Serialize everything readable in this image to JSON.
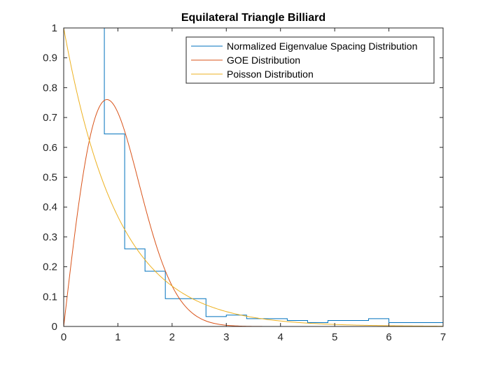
{
  "chart_data": {
    "type": "line",
    "title": "Equilateral Triangle Billiard",
    "xlabel": "",
    "ylabel": "",
    "xlim": [
      0,
      7
    ],
    "ylim": [
      0,
      1
    ],
    "x_ticks": [
      "0",
      "1",
      "2",
      "3",
      "4",
      "5",
      "6",
      "7"
    ],
    "y_ticks": [
      "0",
      "0.1",
      "0.2",
      "0.3",
      "0.4",
      "0.5",
      "0.6",
      "0.7",
      "0.8",
      "0.9",
      "1"
    ],
    "grid": false,
    "legend_position": "top-right",
    "series": [
      {
        "name": "Normalized Eigenvalue Spacing Distribution",
        "kind": "stairs",
        "color": "#0072BD",
        "edges": [
          0.375,
          0.75,
          1.125,
          1.5,
          1.875,
          2.25,
          2.625,
          3.0,
          3.375,
          3.75,
          4.125,
          4.5,
          4.875,
          5.25,
          5.625,
          6.0,
          6.375,
          6.75,
          7.0
        ],
        "values": [
          1.0,
          0.645,
          0.26,
          0.185,
          0.093,
          0.093,
          0.033,
          0.038,
          0.026,
          0.026,
          0.02,
          0.013,
          0.02,
          0.02,
          0.026,
          0.013,
          0.013,
          0.013
        ]
      },
      {
        "name": "GOE Distribution",
        "kind": "function",
        "formula": "pi/2 * s * exp(-pi*s^2/4)",
        "color": "#D95319",
        "x": [
          0,
          0.1,
          0.2,
          0.3,
          0.4,
          0.5,
          0.6,
          0.7,
          0.8,
          0.9,
          1.0,
          1.2,
          1.4,
          1.6,
          1.8,
          2.0,
          2.2,
          2.4,
          2.6,
          2.8,
          3.0,
          3.5,
          4.0,
          5.0,
          6.0,
          7.0
        ],
        "values": [
          0,
          0.156,
          0.303,
          0.441,
          0.553,
          0.645,
          0.71,
          0.748,
          0.76,
          0.748,
          0.716,
          0.608,
          0.47,
          0.337,
          0.222,
          0.136,
          0.076,
          0.04,
          0.02,
          0.009,
          0.004,
          0.0003,
          0,
          0,
          0,
          0
        ]
      },
      {
        "name": "Poisson Distribution",
        "kind": "function",
        "formula": "exp(-s)",
        "color": "#EDB120",
        "x": [
          0,
          0.25,
          0.5,
          0.75,
          1.0,
          1.5,
          2.0,
          2.5,
          3.0,
          3.5,
          4.0,
          5.0,
          6.0,
          7.0
        ],
        "values": [
          1.0,
          0.779,
          0.607,
          0.472,
          0.368,
          0.223,
          0.135,
          0.082,
          0.05,
          0.03,
          0.018,
          0.007,
          0.002,
          0.001
        ]
      }
    ]
  }
}
